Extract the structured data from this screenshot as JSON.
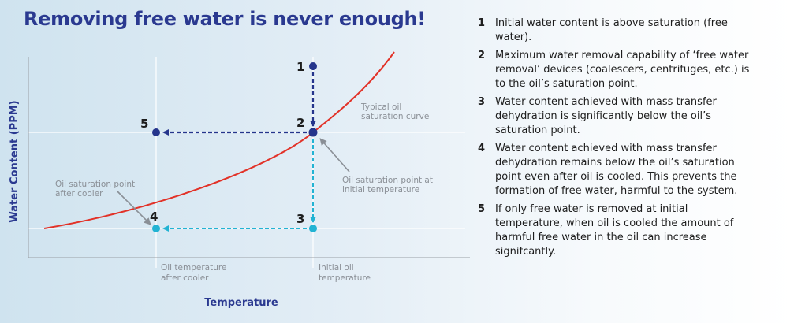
{
  "title": "Removing free water is never enough!",
  "diagram": {
    "y_axis_label": "Water Content (PPM)",
    "x_axis_label": "Temperature",
    "curve_label": [
      "Typical oil",
      "saturation curve"
    ],
    "init_point_label": [
      "Oil saturation point at",
      "initial temperature"
    ],
    "cooler_point_label": [
      "Oil saturation point",
      "after cooler"
    ],
    "x_tick_cooler": [
      "Oil temperature",
      "after cooler"
    ],
    "x_tick_initial": [
      "Initial oil",
      "temperature"
    ],
    "points": [
      "1",
      "2",
      "3",
      "4",
      "5"
    ],
    "colors": {
      "title": "#2a3990",
      "curve": "#e23228",
      "dark_arrow": "#25358c",
      "light_arrow": "#22b3d3",
      "annotation": "#8a8f96"
    }
  },
  "notes": [
    {
      "num": "1",
      "text": "Initial water content is above saturation (free water)."
    },
    {
      "num": "2",
      "text": "Maximum water removal capability of ‘free water removal’ devices (coalescers, centrifuges, etc.) is to the oil’s saturation point."
    },
    {
      "num": "3",
      "text": "Water content achieved with mass transfer dehydration is significantly below the oil’s saturation point."
    },
    {
      "num": "4",
      "text": "Water content achieved with mass transfer dehydration remains below the oil’s saturation point even after oil is cooled. This prevents the formation of free water, harmful to the system."
    },
    {
      "num": "5",
      "text": "If only free water is removed at initial temperature, when oil is cooled the amount of harmful free water in the oil can increase signifcantly."
    }
  ]
}
